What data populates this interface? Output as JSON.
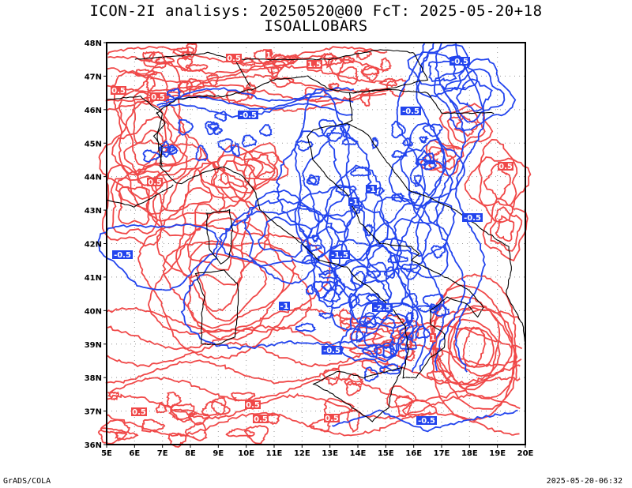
{
  "header": {
    "title_line1": "ICON-2I analisys: 20250520@00 FcT: 2025-05-20+18",
    "title_line2": "ISOALLOBARS"
  },
  "map": {
    "lat_labels": [
      "36N",
      "37N",
      "38N",
      "39N",
      "40N",
      "41N",
      "42N",
      "43N",
      "44N",
      "45N",
      "46N",
      "47N",
      "48N"
    ],
    "lon_labels": [
      "5E",
      "6E",
      "7E",
      "8E",
      "9E",
      "10E",
      "11E",
      "12E",
      "13E",
      "14E",
      "15E",
      "16E",
      "17E",
      "18E",
      "19E",
      "20E"
    ],
    "lat_range": [
      36,
      48
    ],
    "lon_range": [
      5,
      20
    ],
    "grid": "dotted",
    "colors": {
      "positive": "#f04848",
      "negative": "#2244ee",
      "coast": "#000000"
    },
    "contour_labels_positive": [
      "0.5",
      "1",
      "1.5",
      "0.5",
      "0.5",
      "0.5",
      "0.5",
      "0.5",
      "1",
      "0.5",
      "0.5",
      "0.5"
    ],
    "contour_labels_negative": [
      "-0.5",
      "-0.5",
      "-0.5",
      "-1",
      "-1.5",
      "-0.5",
      "-1",
      "-2.5",
      "-0.5",
      "-1",
      "-0.5",
      "-0.5"
    ]
  },
  "footer": {
    "left": "GrADS/COLA",
    "right": "2025-05-20-06:32"
  }
}
